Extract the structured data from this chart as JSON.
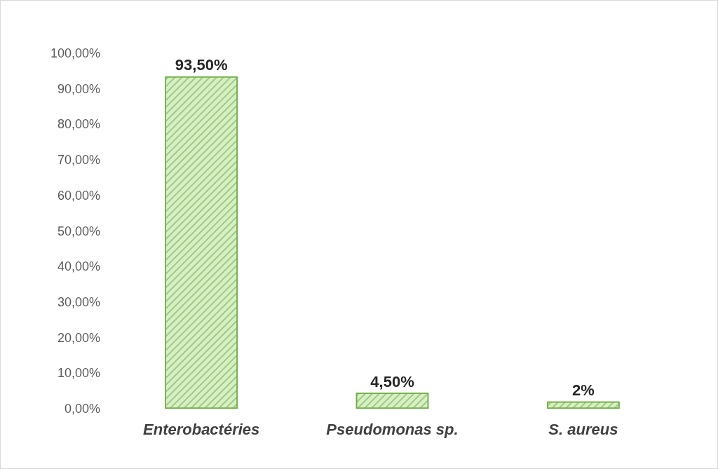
{
  "chart_data": {
    "type": "bar",
    "categories": [
      "Enterobactéries",
      "Pseudomonas sp.",
      "S. aureus"
    ],
    "values": [
      93.5,
      4.5,
      2
    ],
    "value_labels": [
      "93,50%",
      "4,50%",
      "2%"
    ],
    "color": "#d8efc6",
    "ylim": [
      0,
      100
    ],
    "yticks": [
      {
        "value": 0,
        "label": "0,00%"
      },
      {
        "value": 10,
        "label": "10,00%"
      },
      {
        "value": 20,
        "label": "20,00%"
      },
      {
        "value": 30,
        "label": "30,00%"
      },
      {
        "value": 40,
        "label": "40,00%"
      },
      {
        "value": 50,
        "label": "50,00%"
      },
      {
        "value": 60,
        "label": "60,00%"
      },
      {
        "value": 70,
        "label": "70,00%"
      },
      {
        "value": 80,
        "label": "80,00%"
      },
      {
        "value": 90,
        "label": "90,00%"
      },
      {
        "value": 100,
        "label": "100,00%"
      }
    ],
    "grid": false
  }
}
